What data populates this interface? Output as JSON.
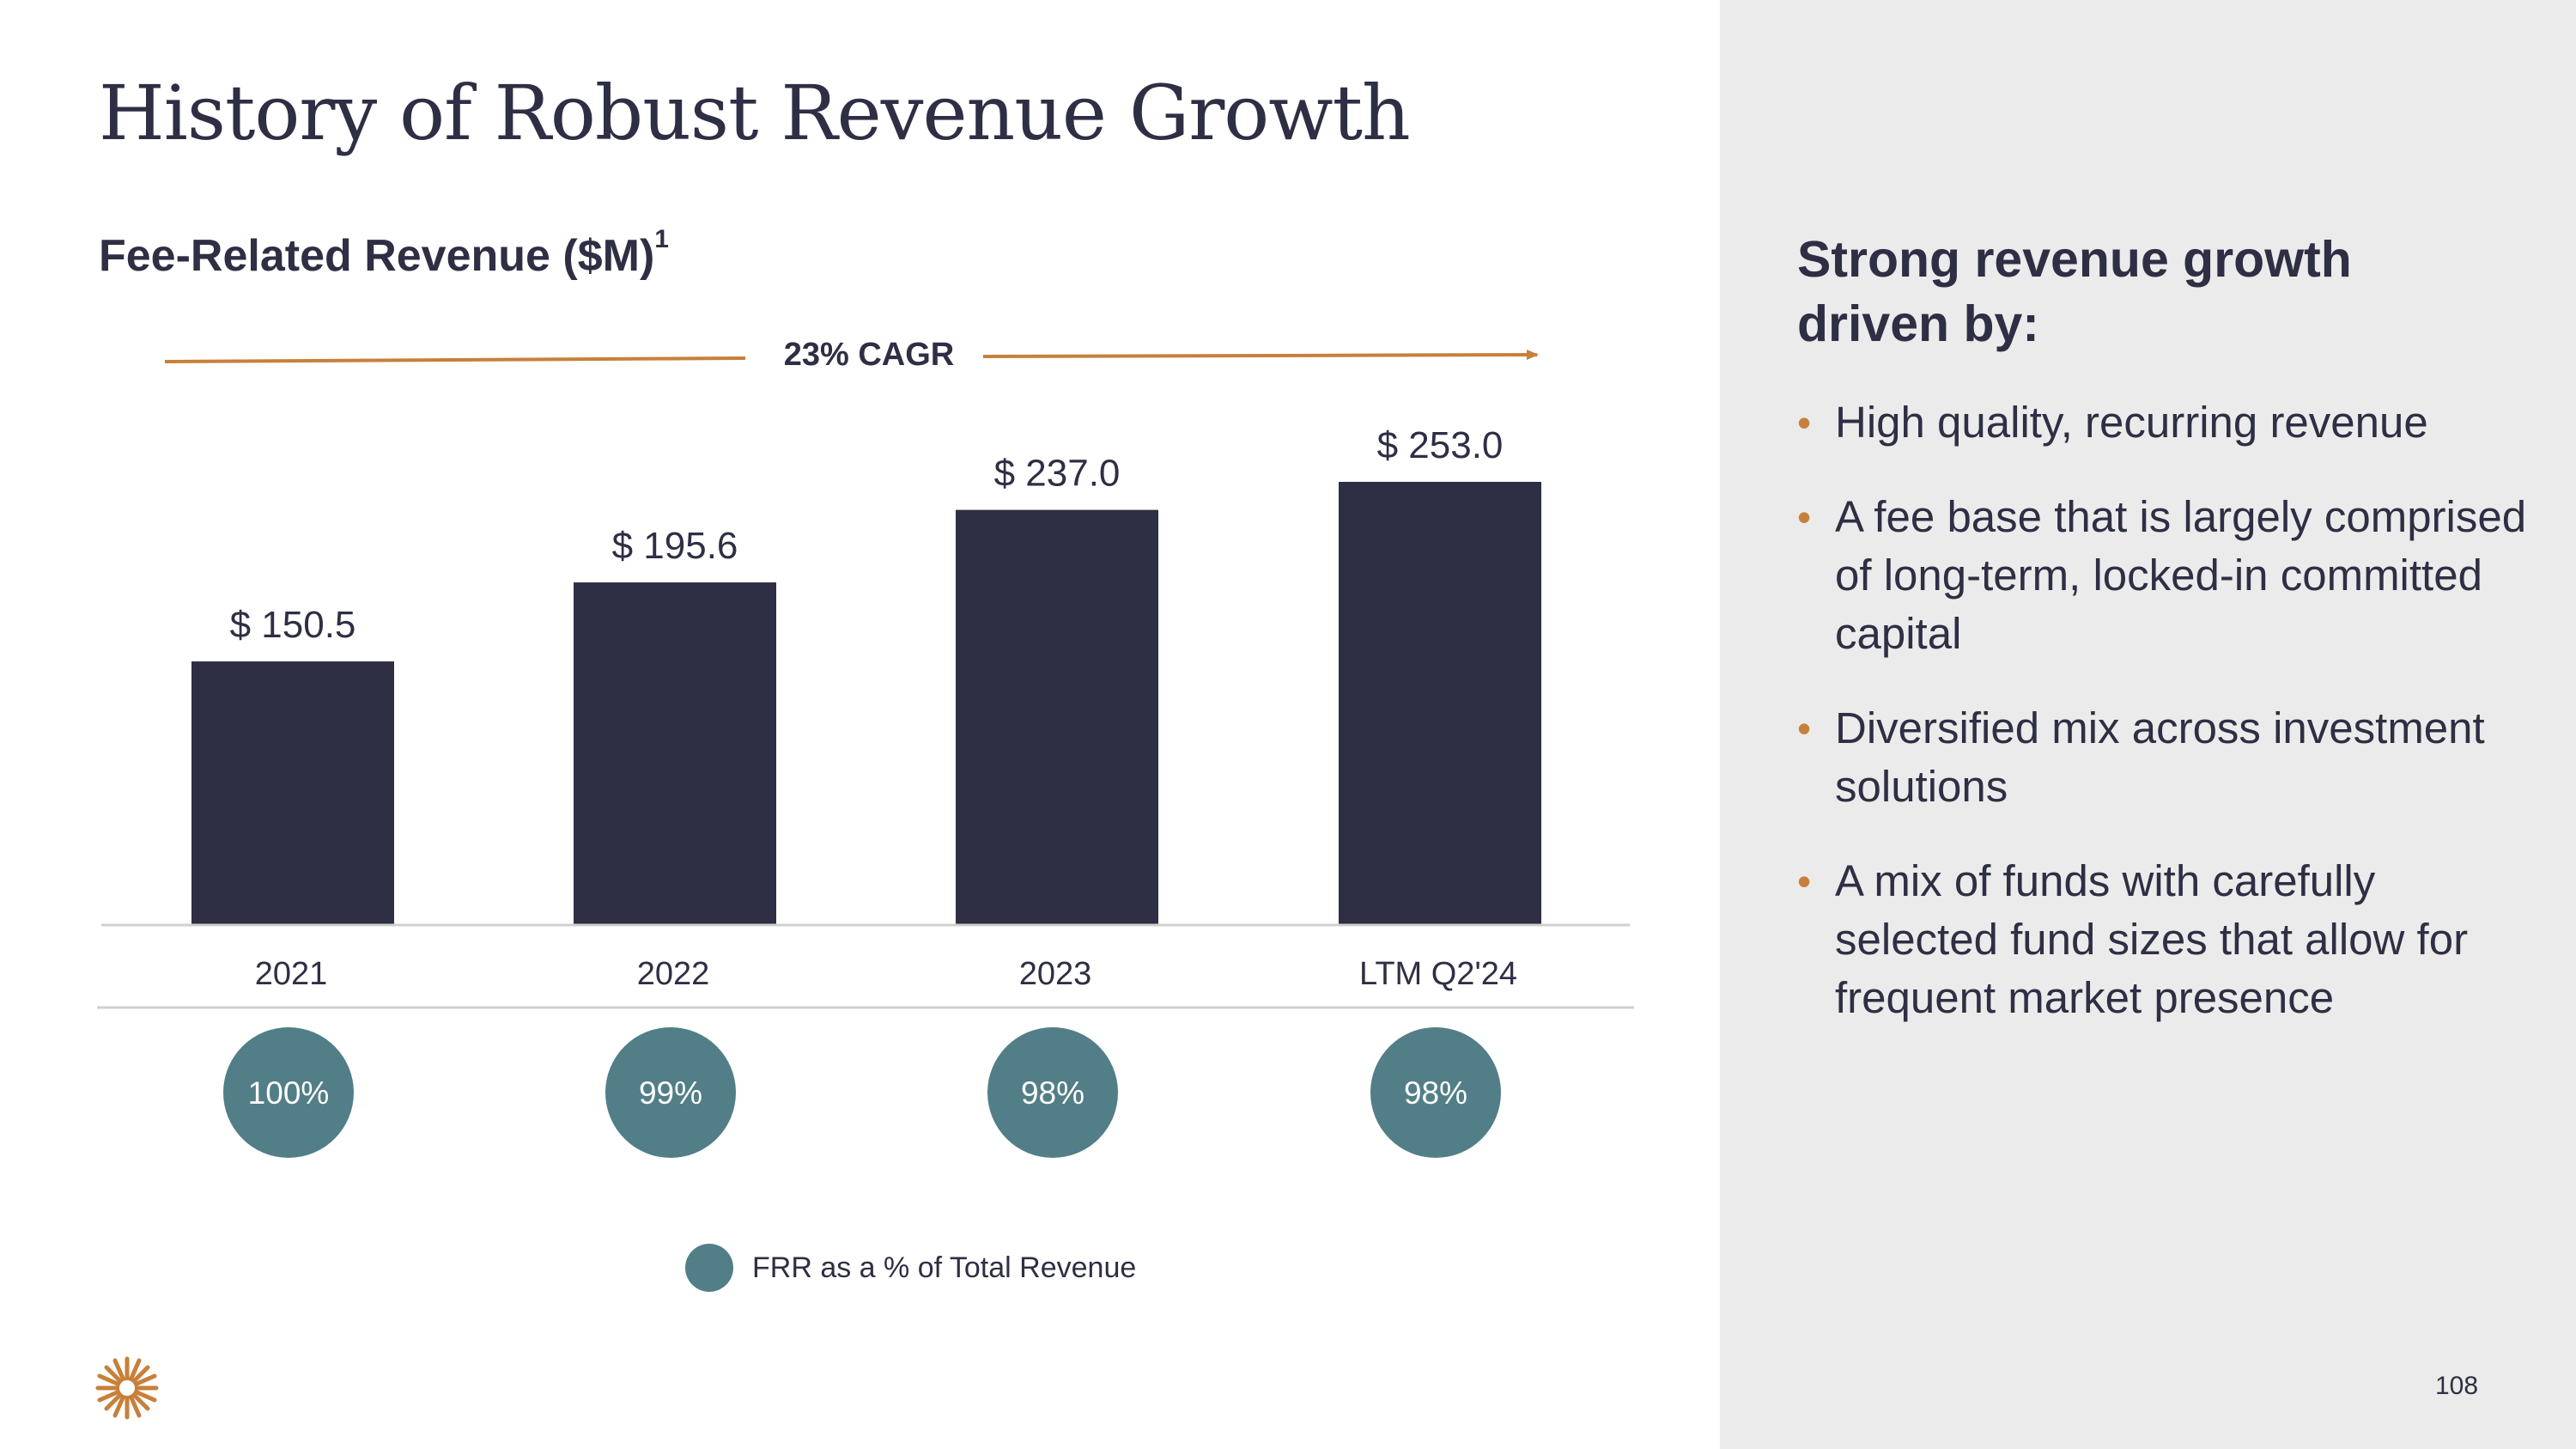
{
  "title": "History of Robust Revenue Growth",
  "subtitle": {
    "text": "Fee-Related Revenue ($M)",
    "footnote": "1"
  },
  "chart_data": {
    "type": "bar",
    "title": "Fee-Related Revenue ($M)",
    "categories": [
      "2021",
      "2022",
      "2023",
      "LTM Q2'24"
    ],
    "values": [
      150.5,
      195.6,
      237.0,
      253.0
    ],
    "value_labels": [
      "$ 150.5",
      "$ 195.6",
      "$ 237.0",
      "$ 253.0"
    ],
    "ylim": [
      0,
      253.0
    ],
    "annotation": "23% CAGR",
    "frr_pct_labels": [
      "100%",
      "99%",
      "98%",
      "98%"
    ],
    "legend": [
      {
        "label": "FRR as a % of Total Revenue",
        "color": "#527e87"
      }
    ],
    "bar_color": "#2e2f44",
    "arrow_color": "#c7803a",
    "xlabel": "",
    "ylabel": ""
  },
  "sidebar": {
    "heading": "Strong revenue growth driven by:",
    "bullets": [
      "High quality, recurring revenue",
      "A fee base that is largely comprised of long-term, locked-in committed capital",
      "Diversified mix across investment solutions",
      "A mix of funds with carefully selected fund sizes that allow for frequent market presence"
    ],
    "bullet_glyph": "•"
  },
  "page_number": "108",
  "logo_icon": "star-burst-logo-icon"
}
